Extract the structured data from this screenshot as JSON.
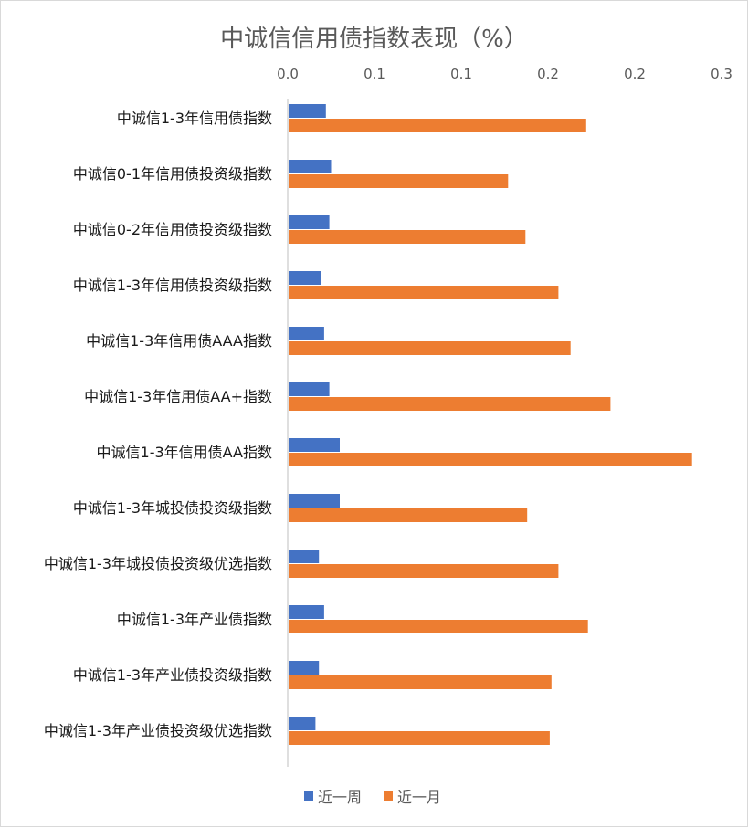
{
  "chart_data": {
    "type": "bar",
    "orientation": "horizontal",
    "title": "中诚信信用债指数表现（%）",
    "x_tick_labels": [
      "0.0",
      "0.1",
      "0.1",
      "0.2",
      "0.2",
      "0.3"
    ],
    "xlim": [
      0,
      0.25
    ],
    "grid": false,
    "legend_position": "bottom",
    "categories": [
      "中诚信1-3年信用债指数",
      "中诚信0-1年信用债投资级指数",
      "中诚信0-2年信用债投资级指数",
      "中诚信1-3年信用债投资级指数",
      "中诚信1-3年信用债AAA指数",
      "中诚信1-3年信用债AA+指数",
      "中诚信1-3年信用债AA指数",
      "中诚信1-3年城投债投资级指数",
      "中诚信1-3年城投债投资级优选指数",
      "中诚信1-3年产业债指数",
      "中诚信1-3年产业债投资级指数",
      "中诚信1-3年产业债投资级优选指数"
    ],
    "series": [
      {
        "name": "近一周",
        "color": "#4472c4",
        "values": [
          0.022,
          0.025,
          0.024,
          0.019,
          0.021,
          0.024,
          0.03,
          0.03,
          0.018,
          0.021,
          0.018,
          0.016
        ]
      },
      {
        "name": "近一月",
        "color": "#ed7d31",
        "values": [
          0.172,
          0.127,
          0.137,
          0.156,
          0.163,
          0.186,
          0.233,
          0.138,
          0.156,
          0.173,
          0.152,
          0.151
        ]
      }
    ]
  }
}
